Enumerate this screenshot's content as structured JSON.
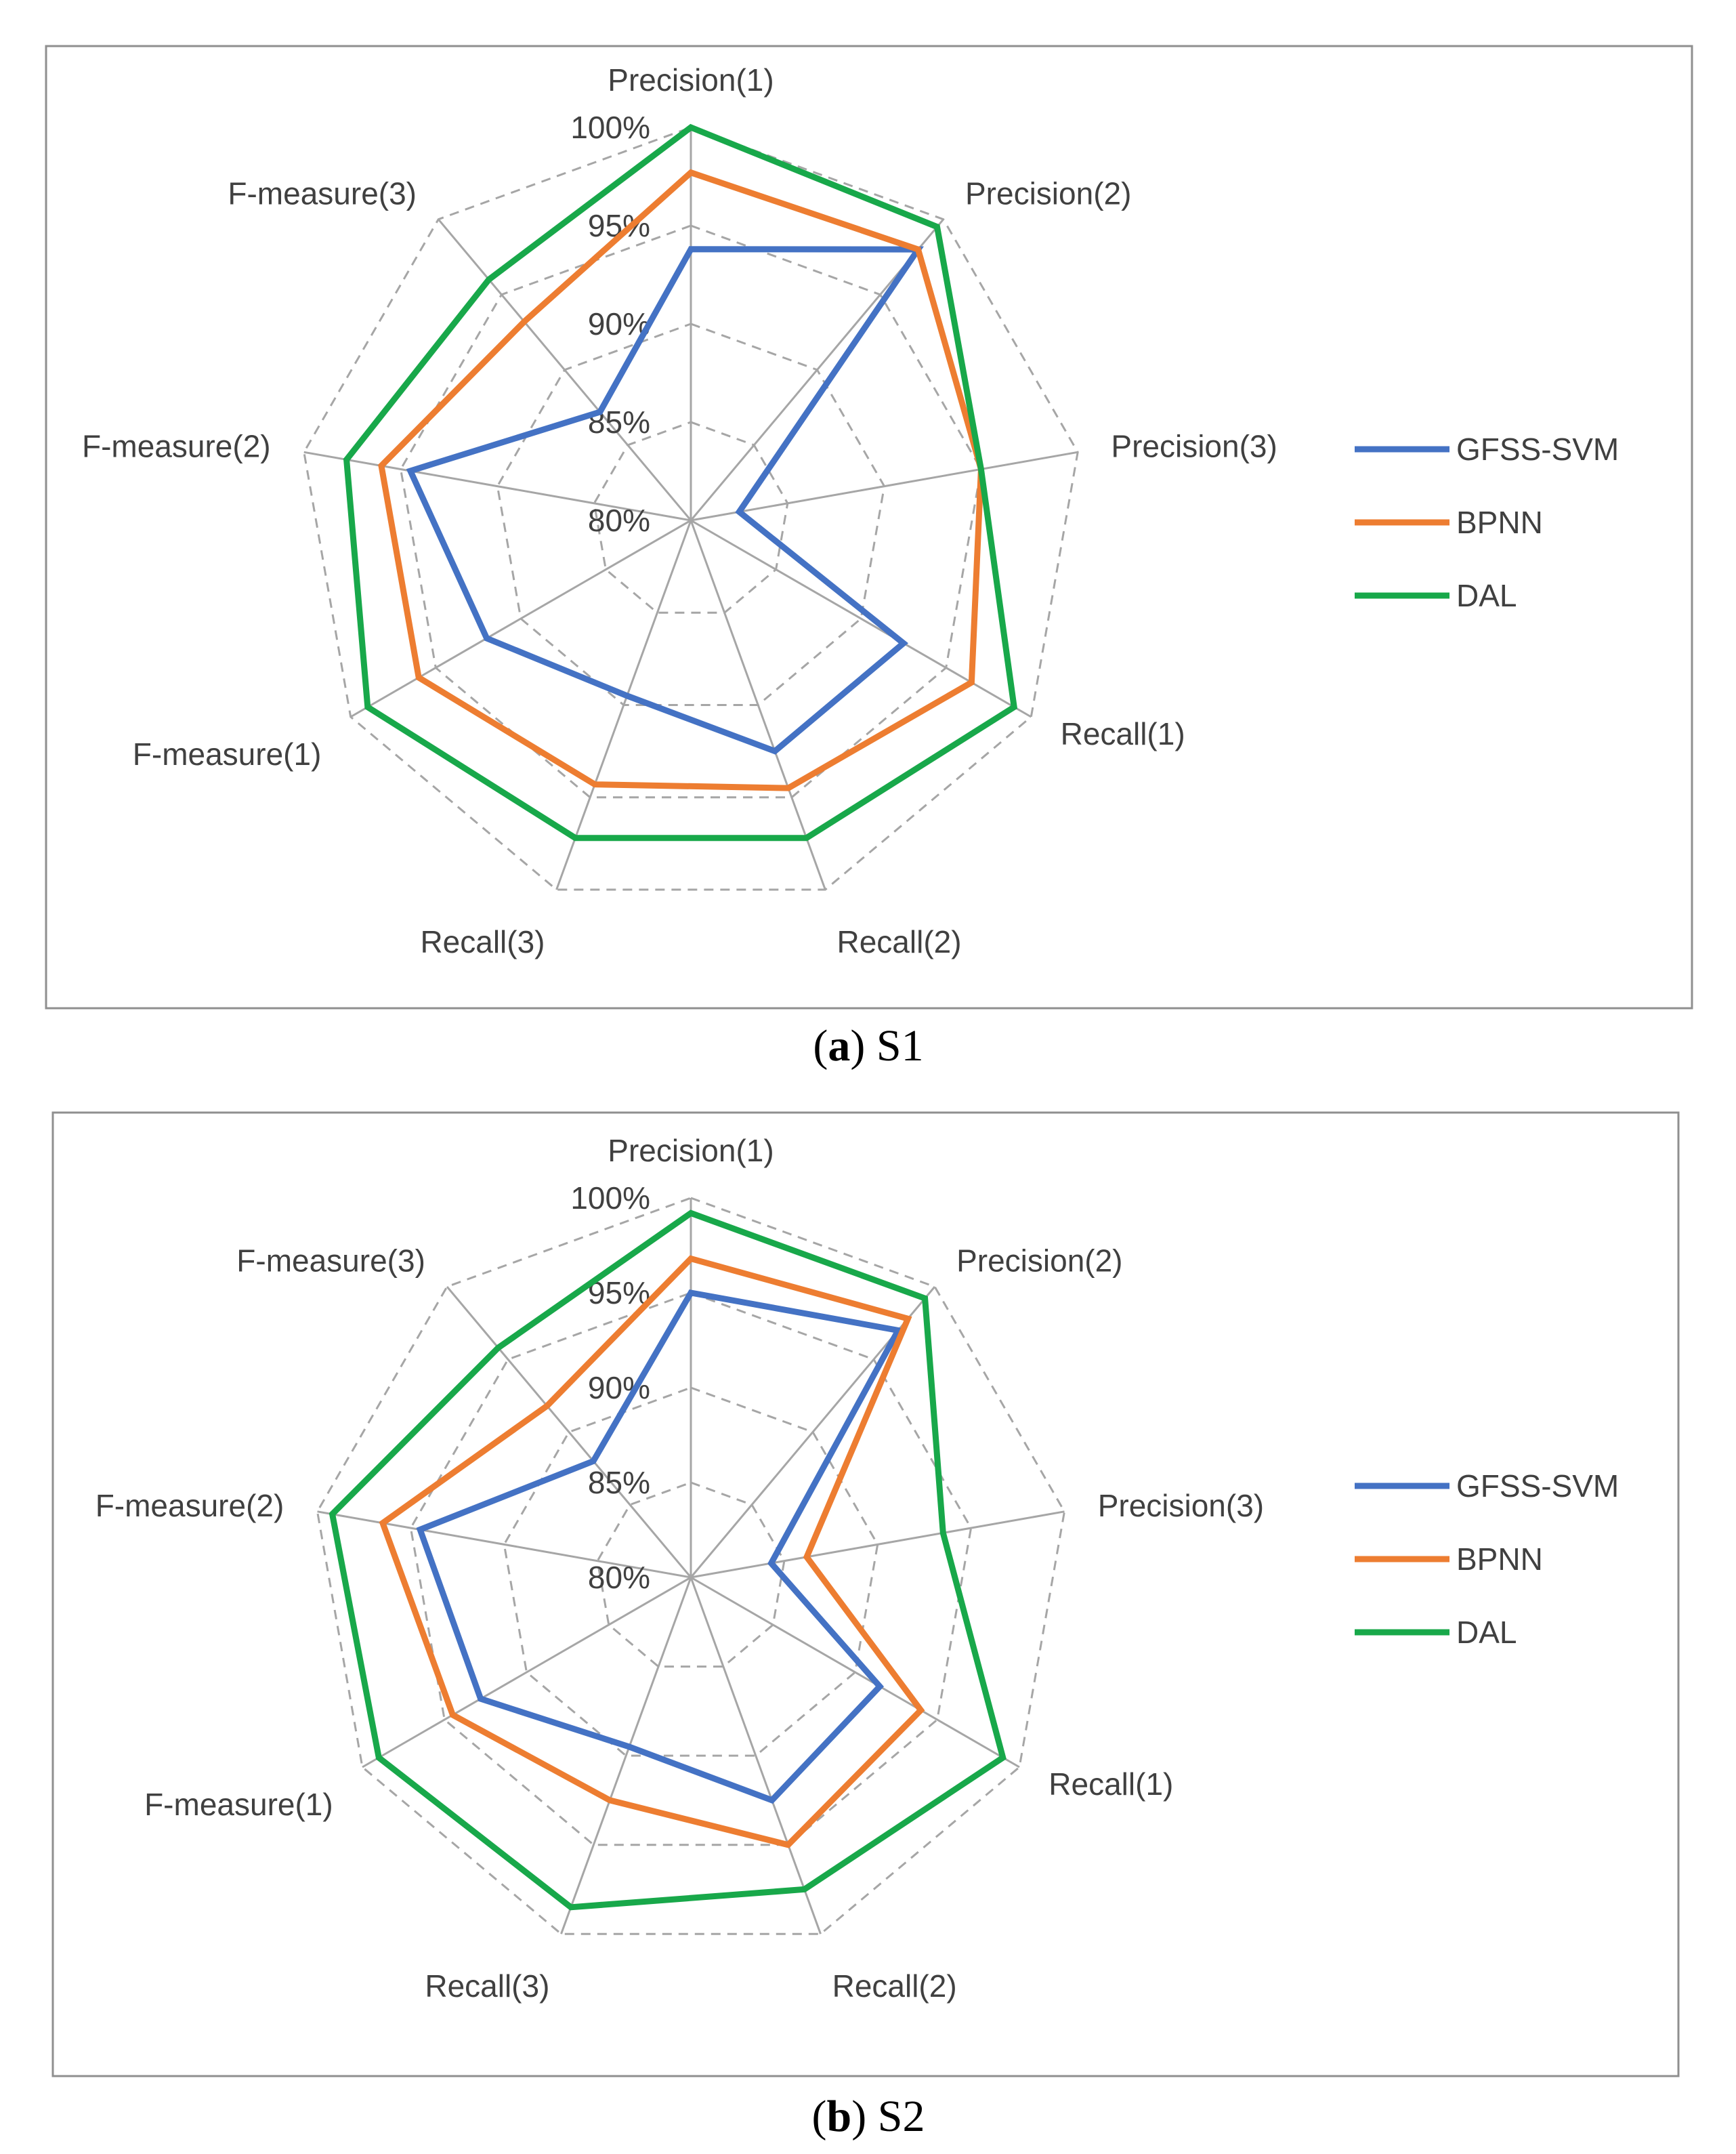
{
  "chart_data": [
    {
      "type": "radar",
      "caption_letter": "a",
      "caption_text": "S1",
      "axes": [
        "Precision(1)",
        "Precision(2)",
        "Precision(3)",
        "Recall(1)",
        "Recall(2)",
        "Recall(3)",
        "F-measure(1)",
        "F-measure(2)",
        "F-measure(3)"
      ],
      "rlim": [
        80,
        100
      ],
      "tick_values": [
        80,
        85,
        90,
        95,
        100
      ],
      "tick_labels": [
        "80%",
        "85%",
        "90%",
        "95%",
        "100%"
      ],
      "legend_position": "right",
      "series": [
        {
          "name": "GFSS-SVM",
          "color": "#4472C4",
          "values": [
            93.8,
            98.0,
            82.5,
            92.5,
            92.5,
            89.5,
            92.0,
            94.5,
            87.2
          ]
        },
        {
          "name": "BPNN",
          "color": "#ED7D31",
          "values": [
            97.7,
            98.0,
            95.0,
            96.5,
            94.5,
            94.3,
            96.0,
            96.0,
            93.2
          ]
        },
        {
          "name": "DAL",
          "color": "#18A84A",
          "values": [
            100.0,
            99.5,
            95.0,
            99.0,
            97.2,
            97.2,
            99.0,
            97.8,
            96.0
          ]
        }
      ]
    },
    {
      "type": "radar",
      "caption_letter": "b",
      "caption_text": "S2",
      "axes": [
        "Precision(1)",
        "Precision(2)",
        "Precision(3)",
        "Recall(1)",
        "Recall(2)",
        "Recall(3)",
        "F-measure(1)",
        "F-measure(2)",
        "F-measure(3)"
      ],
      "rlim": [
        80,
        100
      ],
      "tick_values": [
        80,
        85,
        90,
        95,
        100
      ],
      "tick_labels": [
        "80%",
        "85%",
        "90%",
        "95%",
        "100%"
      ],
      "legend_position": "right",
      "series": [
        {
          "name": "GFSS-SVM",
          "color": "#4472C4",
          "values": [
            95.0,
            97.0,
            84.3,
            91.5,
            92.5,
            89.5,
            92.8,
            94.5,
            88.0
          ]
        },
        {
          "name": "BPNN",
          "color": "#ED7D31",
          "values": [
            96.8,
            97.8,
            86.2,
            94.0,
            95.0,
            92.5,
            94.5,
            96.5,
            91.8
          ]
        },
        {
          "name": "DAL",
          "color": "#18A84A",
          "values": [
            99.2,
            99.2,
            93.5,
            99.0,
            97.5,
            98.5,
            99.0,
            99.2,
            95.8
          ]
        }
      ]
    }
  ]
}
